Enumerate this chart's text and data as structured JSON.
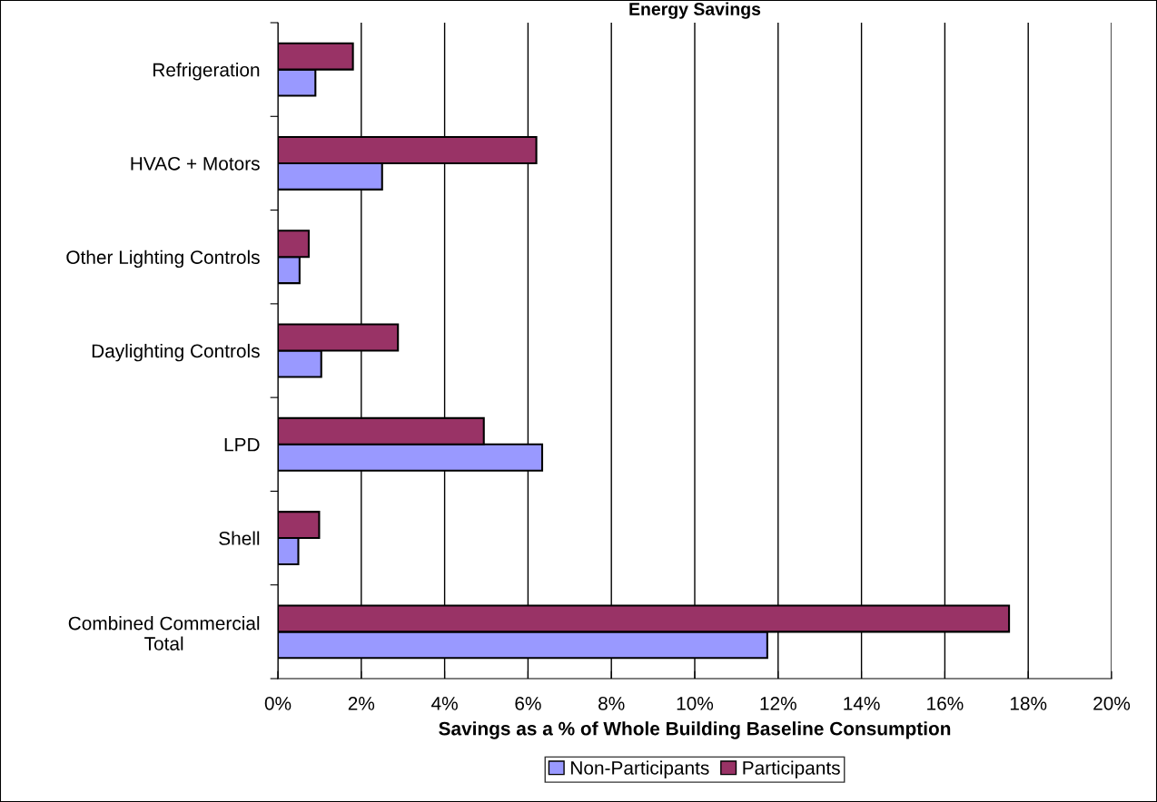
{
  "chart_data": {
    "type": "bar",
    "orientation": "horizontal",
    "title": "Energy Savings",
    "xlabel": "Savings as a % of Whole Building Baseline Consumption",
    "categories": [
      "Refrigeration",
      "HVAC + Motors",
      "Other Lighting Controls",
      "Daylighting Controls",
      "LPD",
      "Shell",
      "Combined Commercial\nTotal"
    ],
    "series": [
      {
        "name": "Non-Participants",
        "color": "#9999ff",
        "values": [
          0.9,
          2.5,
          0.52,
          1.04,
          6.34,
          0.49,
          11.74
        ]
      },
      {
        "name": "Participants",
        "color": "#993366",
        "values": [
          1.8,
          6.2,
          0.74,
          2.88,
          4.94,
          0.99,
          17.54
        ]
      }
    ],
    "xlim": [
      0,
      20
    ],
    "xticks": [
      {
        "value": 0,
        "label": "0%"
      },
      {
        "value": 2,
        "label": "2%"
      },
      {
        "value": 4,
        "label": "4%"
      },
      {
        "value": 6,
        "label": "6%"
      },
      {
        "value": 8,
        "label": "8%"
      },
      {
        "value": 10,
        "label": "10%"
      },
      {
        "value": 12,
        "label": "12%"
      },
      {
        "value": 14,
        "label": "14%"
      },
      {
        "value": 16,
        "label": "16%"
      },
      {
        "value": 18,
        "label": "18%"
      },
      {
        "value": 20,
        "label": "20%"
      }
    ],
    "grid": "x",
    "legend": "bottom"
  }
}
